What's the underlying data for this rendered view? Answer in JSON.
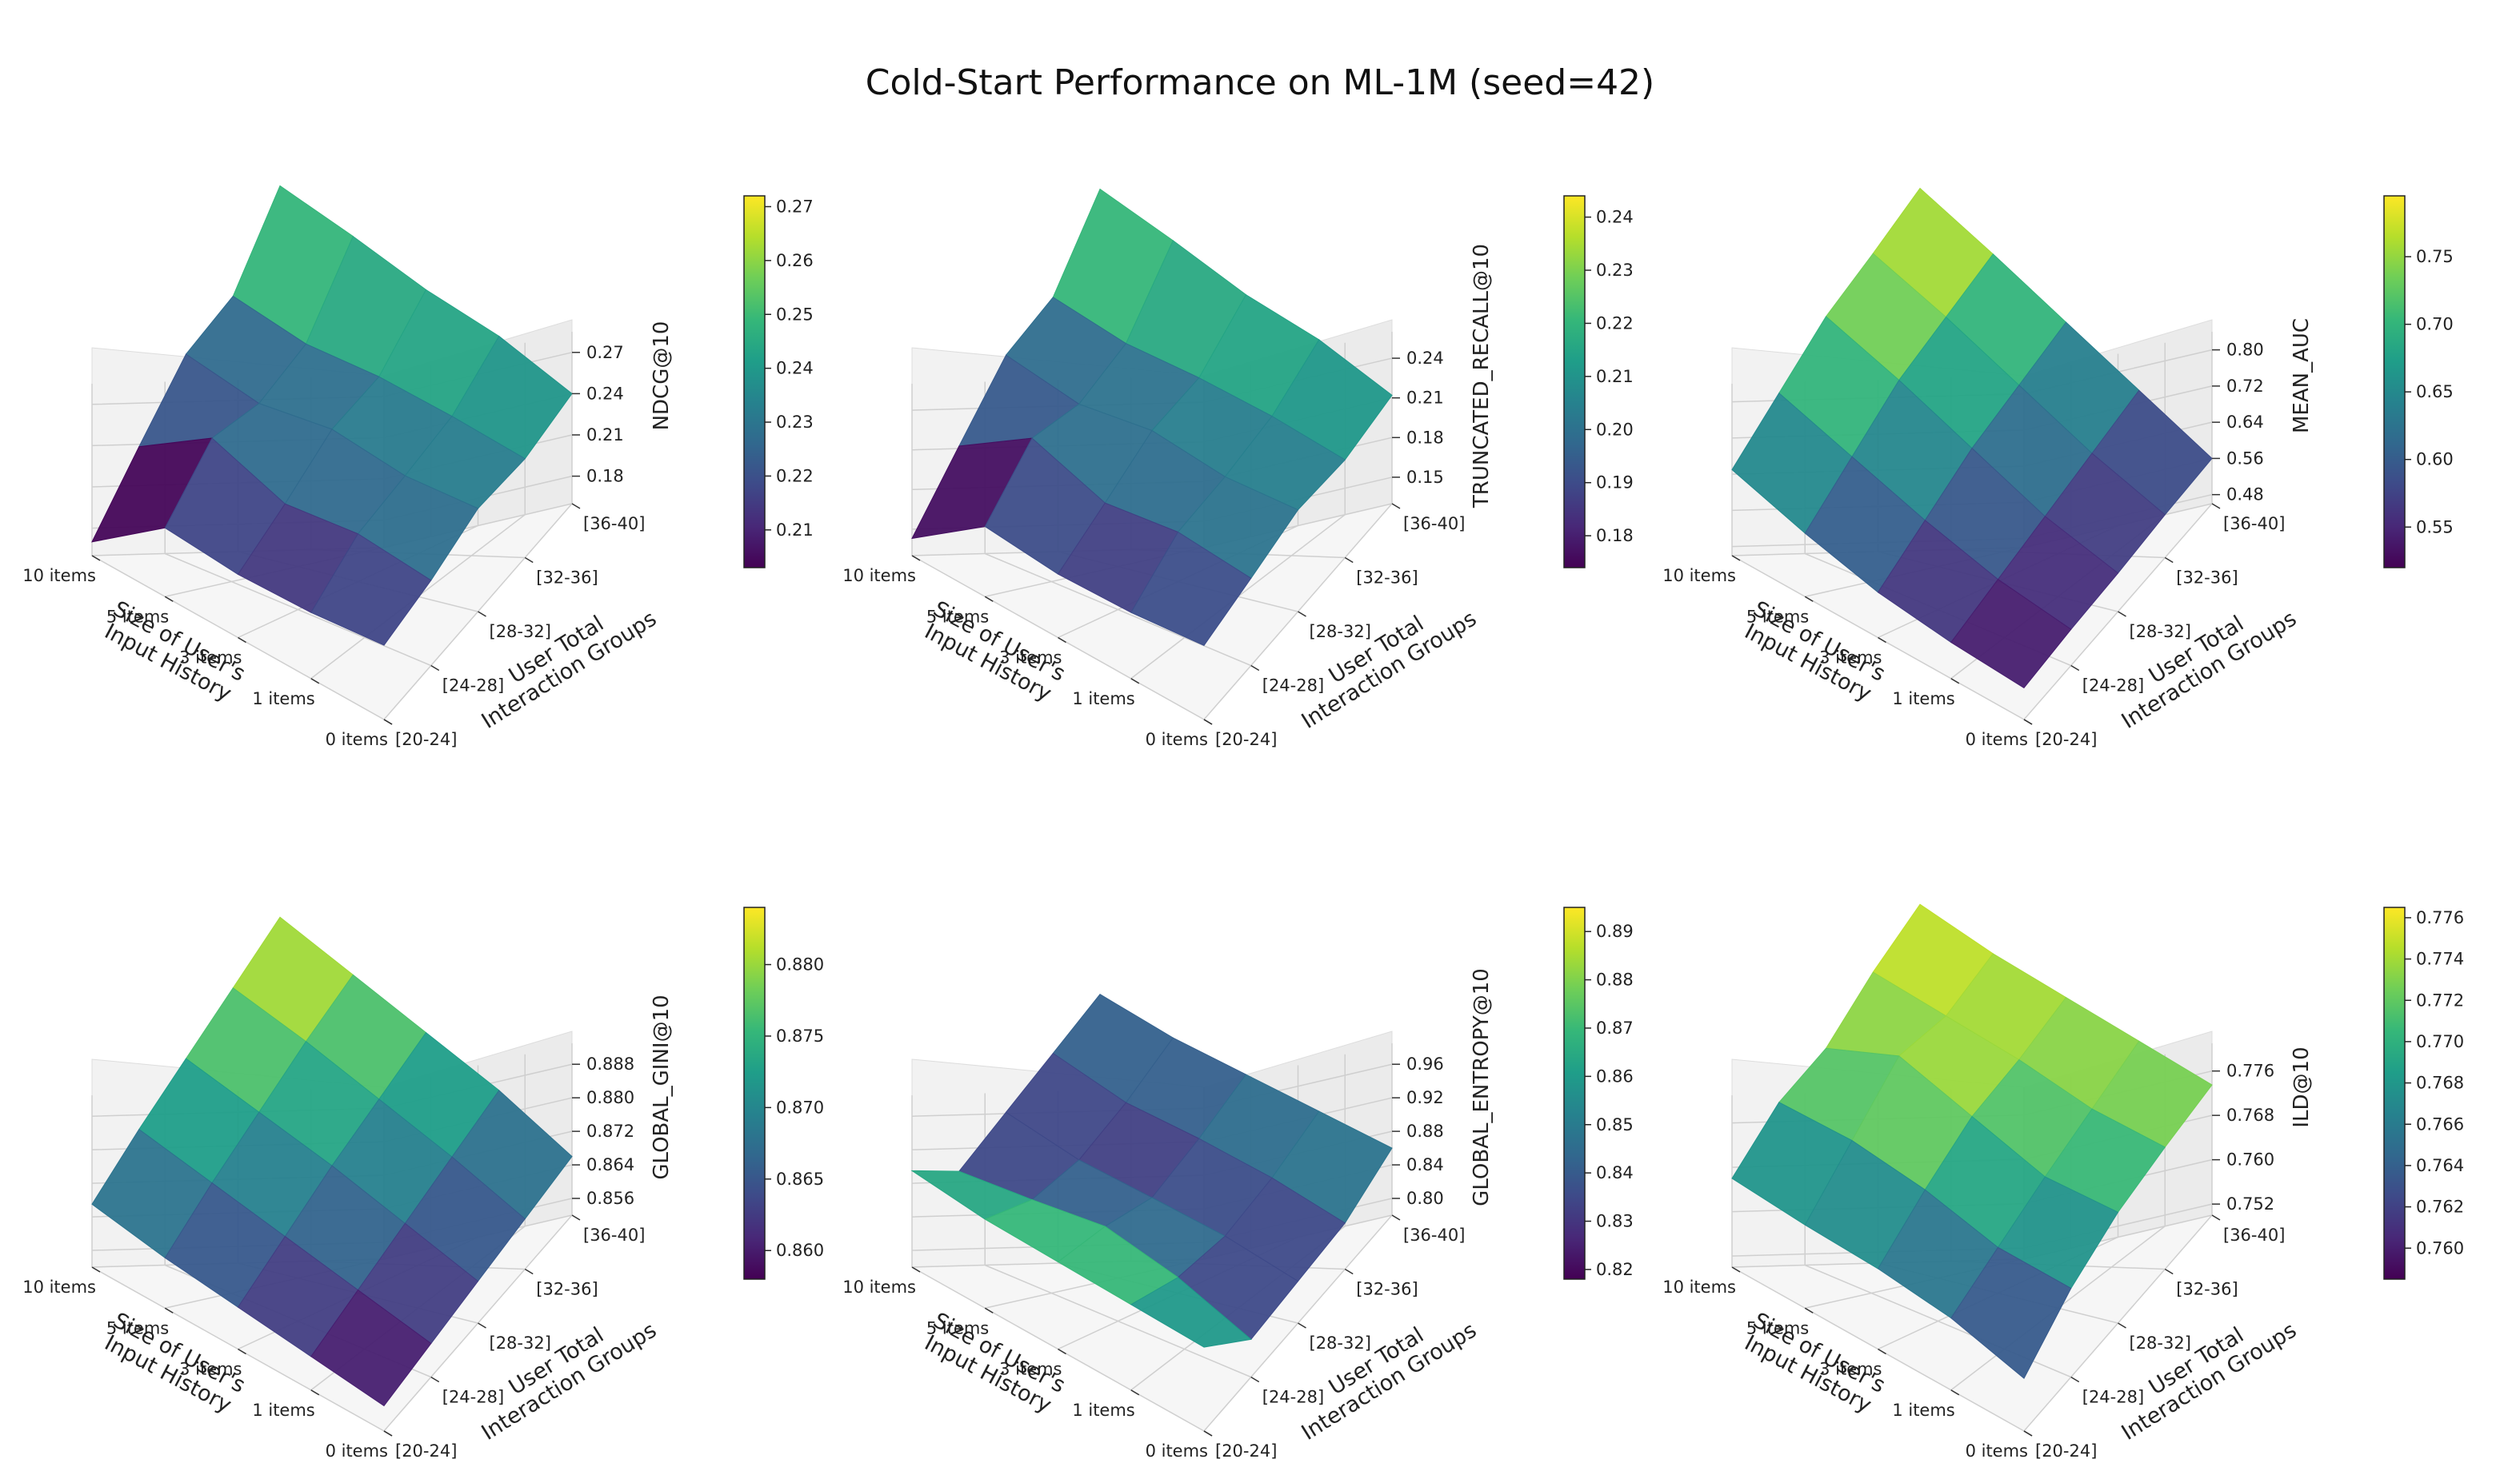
{
  "title": "Cold-Start Performance on ML-1M (seed=42)",
  "chart_data": [
    {
      "type": "surface3d",
      "zlabel": "NDCG@10",
      "xlabel": [
        "Size of User's",
        "Input History"
      ],
      "ylabel": [
        "User Total",
        "Interaction Groups"
      ],
      "x_ticks": [
        "0 items",
        "1 items",
        "3 items",
        "5 items",
        "10 items"
      ],
      "y_ticks": [
        "[20-24]",
        "[24-28]",
        "[28-32]",
        "[32-36]",
        "[36-40]"
      ],
      "z_ticks": [
        "0.18",
        "0.21",
        "0.24",
        "0.27"
      ],
      "colorbar_ticks": [
        "0.21",
        "0.22",
        "0.23",
        "0.24",
        "0.25",
        "0.26",
        "0.27"
      ],
      "colorbar_range": [
        0.203,
        0.272
      ],
      "zlim": [
        0.16,
        0.285
      ],
      "values": [
        [
          0.214,
          0.222,
          0.235,
          0.232,
          0.24
        ],
        [
          0.208,
          0.226,
          0.229,
          0.233,
          0.252
        ],
        [
          0.206,
          0.218,
          0.233,
          0.232,
          0.256
        ],
        [
          0.21,
          0.236,
          0.222,
          0.226,
          0.265
        ],
        [
          0.17,
          0.2,
          0.228,
          0.231,
          0.272
        ]
      ]
    },
    {
      "type": "surface3d",
      "zlabel": "TRUNCATED_RECALL@10",
      "xlabel": [
        "Size of User's",
        "Input History"
      ],
      "ylabel": [
        "User Total",
        "Interaction Groups"
      ],
      "x_ticks": [
        "0 items",
        "1 items",
        "3 items",
        "5 items",
        "10 items"
      ],
      "y_ticks": [
        "[20-24]",
        "[24-28]",
        "[28-32]",
        "[32-36]",
        "[36-40]"
      ],
      "z_ticks": [
        "0.15",
        "0.18",
        "0.21",
        "0.24"
      ],
      "colorbar_ticks": [
        "0.18",
        "0.19",
        "0.20",
        "0.21",
        "0.22",
        "0.23",
        "0.24"
      ],
      "colorbar_range": [
        0.174,
        0.244
      ],
      "zlim": [
        0.13,
        0.26
      ],
      "values": [
        [
          0.186,
          0.196,
          0.207,
          0.204,
          0.212
        ],
        [
          0.18,
          0.2,
          0.201,
          0.206,
          0.223
        ],
        [
          0.178,
          0.191,
          0.205,
          0.204,
          0.226
        ],
        [
          0.183,
          0.209,
          0.194,
          0.199,
          0.236
        ],
        [
          0.143,
          0.172,
          0.2,
          0.203,
          0.244
        ]
      ]
    },
    {
      "type": "surface3d",
      "zlabel": "MEAN_AUC",
      "xlabel": [
        "Size of User's",
        "Input History"
      ],
      "ylabel": [
        "User Total",
        "Interaction Groups"
      ],
      "x_ticks": [
        "0 items",
        "1 items",
        "3 items",
        "5 items",
        "10 items"
      ],
      "y_ticks": [
        "[20-24]",
        "[24-28]",
        "[28-32]",
        "[32-36]",
        "[36-40]"
      ],
      "z_ticks": [
        "0.48",
        "0.56",
        "0.64",
        "0.72",
        "0.80"
      ],
      "colorbar_ticks": [
        "0.55",
        "0.60",
        "0.65",
        "0.70",
        "0.75"
      ],
      "colorbar_range": [
        0.52,
        0.795
      ],
      "zlim": [
        0.46,
        0.84
      ],
      "values": [
        [
          0.53,
          0.54,
          0.545,
          0.555,
          0.56
        ],
        [
          0.54,
          0.56,
          0.58,
          0.6,
          0.62
        ],
        [
          0.56,
          0.6,
          0.64,
          0.66,
          0.68
        ],
        [
          0.6,
          0.65,
          0.7,
          0.72,
          0.74
        ],
        [
          0.65,
          0.7,
          0.75,
          0.77,
          0.795
        ]
      ]
    },
    {
      "type": "surface3d",
      "zlabel": "GLOBAL_GINI@10",
      "xlabel": [
        "Size of User's",
        "Input History"
      ],
      "ylabel": [
        "User Total",
        "Interaction Groups"
      ],
      "x_ticks": [
        "0 items",
        "1 items",
        "3 items",
        "5 items",
        "10 items"
      ],
      "y_ticks": [
        "[20-24]",
        "[24-28]",
        "[28-32]",
        "[32-36]",
        "[36-40]"
      ],
      "z_ticks": [
        "0.856",
        "0.864",
        "0.872",
        "0.880",
        "0.888"
      ],
      "colorbar_ticks": [
        "0.860",
        "0.865",
        "0.870",
        "0.875",
        "0.880"
      ],
      "colorbar_range": [
        0.858,
        0.884
      ],
      "zlim": [
        0.852,
        0.893
      ],
      "values": [
        [
          0.858,
          0.86,
          0.862,
          0.864,
          0.866
        ],
        [
          0.86,
          0.863,
          0.866,
          0.869,
          0.872
        ],
        [
          0.862,
          0.866,
          0.87,
          0.873,
          0.876
        ],
        [
          0.864,
          0.869,
          0.873,
          0.877,
          0.88
        ],
        [
          0.867,
          0.872,
          0.876,
          0.88,
          0.884
        ]
      ]
    },
    {
      "type": "surface3d",
      "zlabel": "GLOBAL_ENTROPY@10",
      "xlabel": [
        "Size of User's",
        "Input History"
      ],
      "ylabel": [
        "User Total",
        "Interaction Groups"
      ],
      "x_ticks": [
        "0 items",
        "1 items",
        "3 items",
        "5 items",
        "10 items"
      ],
      "y_ticks": [
        "[20-24]",
        "[24-28]",
        "[28-32]",
        "[32-36]",
        "[36-40]"
      ],
      "z_ticks": [
        "0.80",
        "0.84",
        "0.88",
        "0.92",
        "0.96"
      ],
      "colorbar_ticks": [
        "0.82",
        "0.83",
        "0.84",
        "0.85",
        "0.86",
        "0.87",
        "0.88",
        "0.89"
      ],
      "colorbar_range": [
        0.818,
        0.895
      ],
      "zlim": [
        0.78,
        0.985
      ],
      "values": [
        [
          0.88,
          0.825,
          0.83,
          0.835,
          0.86
        ],
        [
          0.882,
          0.85,
          0.835,
          0.84,
          0.855
        ],
        [
          0.884,
          0.862,
          0.832,
          0.838,
          0.85
        ],
        [
          0.886,
          0.845,
          0.828,
          0.832,
          0.845
        ],
        [
          0.895,
          0.83,
          0.836,
          0.842,
          0.848
        ]
      ]
    },
    {
      "type": "surface3d",
      "zlabel": "ILD@10",
      "xlabel": [
        "Size of User's",
        "Input History"
      ],
      "ylabel": [
        "User Total",
        "Interaction Groups"
      ],
      "x_ticks": [
        "0 items",
        "1 items",
        "3 items",
        "5 items",
        "10 items"
      ],
      "y_ticks": [
        "[20-24]",
        "[24-28]",
        "[28-32]",
        "[32-36]",
        "[36-40]"
      ],
      "z_ticks": [
        "0.752",
        "0.760",
        "0.768",
        "0.776"
      ],
      "colorbar_ticks": [
        "0.760",
        "0.762",
        "0.764",
        "0.766",
        "0.768",
        "0.770",
        "0.772",
        "0.774",
        "0.776"
      ],
      "colorbar_range": [
        0.7585,
        0.7765
      ],
      "zlim": [
        0.75,
        0.781
      ],
      "values": [
        [
          0.7595,
          0.766,
          0.77,
          0.772,
          0.7735
        ],
        [
          0.763,
          0.766,
          0.769,
          0.7715,
          0.774
        ],
        [
          0.7645,
          0.769,
          0.7725,
          0.773,
          0.7745
        ],
        [
          0.765,
          0.7705,
          0.776,
          0.7735,
          0.775
        ],
        [
          0.766,
          0.77,
          0.77,
          0.774,
          0.7765
        ]
      ]
    }
  ]
}
